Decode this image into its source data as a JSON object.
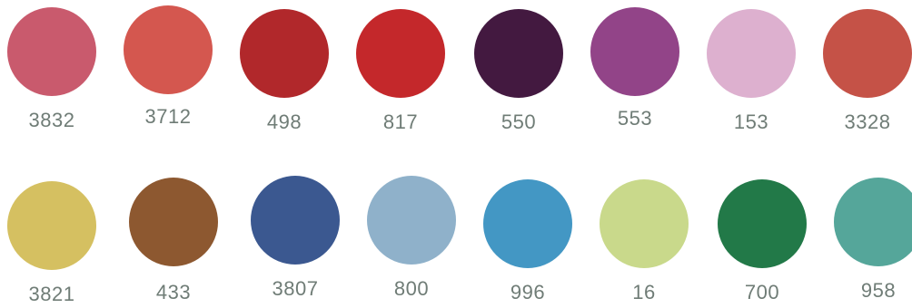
{
  "swatches": {
    "row1": [
      {
        "code": "3832",
        "color": "#c95a6d"
      },
      {
        "code": "3712",
        "color": "#d4574f"
      },
      {
        "code": "498",
        "color": "#b1282b"
      },
      {
        "code": "817",
        "color": "#c4282b"
      },
      {
        "code": "550",
        "color": "#431940"
      },
      {
        "code": "553",
        "color": "#924488"
      },
      {
        "code": "153",
        "color": "#ddb0cf"
      },
      {
        "code": "3328",
        "color": "#c55247"
      }
    ],
    "row2": [
      {
        "code": "3821",
        "color": "#d5c061"
      },
      {
        "code": "433",
        "color": "#8d5830"
      },
      {
        "code": "3807",
        "color": "#3b5890"
      },
      {
        "code": "800",
        "color": "#8fb1ca"
      },
      {
        "code": "996",
        "color": "#4397c4"
      },
      {
        "code": "16",
        "color": "#c9d98b"
      },
      {
        "code": "700",
        "color": "#227948"
      },
      {
        "code": "958",
        "color": "#55a69a"
      }
    ]
  }
}
